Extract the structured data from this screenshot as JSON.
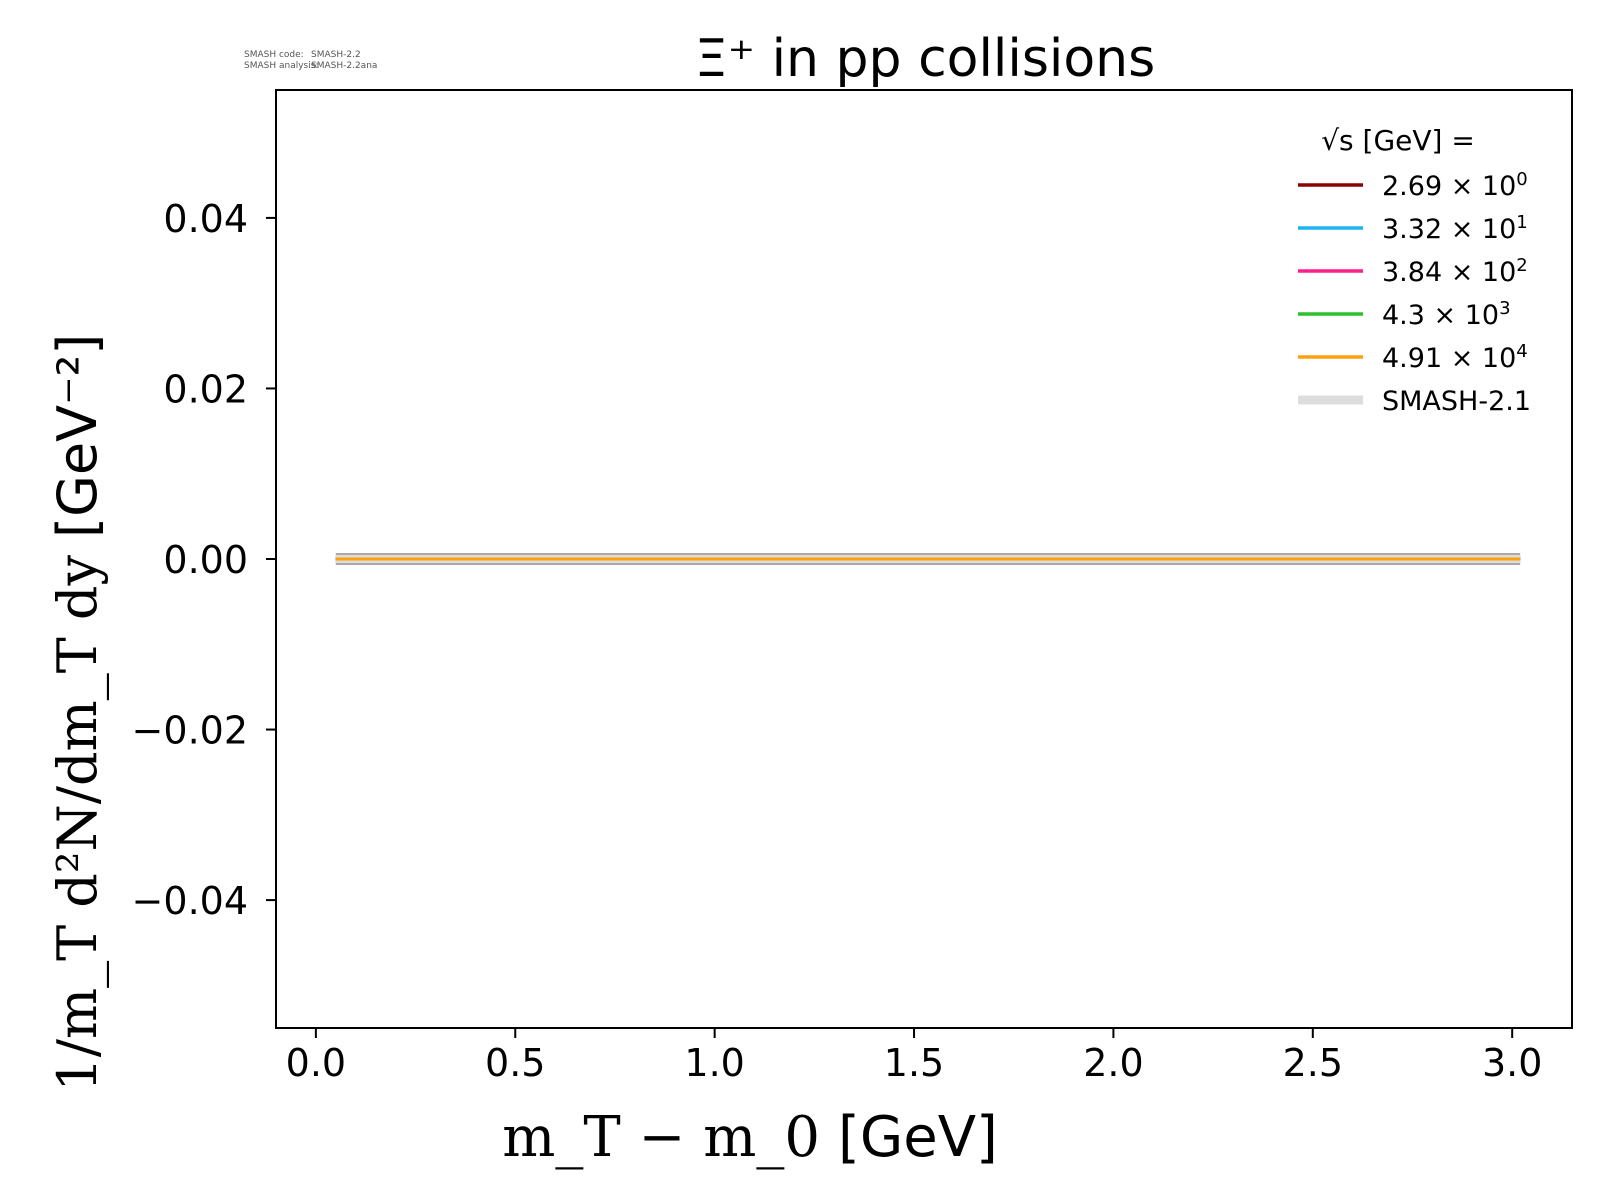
{
  "meta": {
    "code_label": "SMASH code:",
    "code_value": "SMASH-2.2",
    "analysis_label": "SMASH analysis:",
    "analysis_value": "SMASH-2.2ana"
  },
  "colors": {
    "frame": "#000000",
    "reference": "#dddddd",
    "reference_edge": "#aaaaaa"
  },
  "chart_data": {
    "type": "line",
    "title": "Ξ⁺ in pp collisions",
    "xlabel_math": "m_T − m_0",
    "xlabel_unit": "[GeV]",
    "ylabel_math": "1/m_T d²N/dm_T dy",
    "ylabel_unit": "[GeV⁻²]",
    "xlim": [
      -0.1,
      3.15
    ],
    "ylim": [
      -0.055,
      0.055
    ],
    "xticks": [
      0.0,
      0.5,
      1.0,
      1.5,
      2.0,
      2.5,
      3.0
    ],
    "xtick_labels": [
      "0.0",
      "0.5",
      "1.0",
      "1.5",
      "2.0",
      "2.5",
      "3.0"
    ],
    "yticks": [
      0.04,
      0.02,
      0.0,
      -0.02,
      -0.04
    ],
    "ytick_labels": [
      "0.04",
      "0.02",
      "0.00",
      "−0.02",
      "−0.04"
    ],
    "grid": false,
    "legend_position": "top-right",
    "legend_title": "√s  [GeV] =",
    "series": [
      {
        "name": "2.69 × 10⁰",
        "mant": "2.69",
        "exp": "0",
        "color": "#8b0000",
        "x": [
          0.05,
          3.02
        ],
        "y": [
          0.0,
          0.0
        ]
      },
      {
        "name": "3.32 × 10¹",
        "mant": "3.32",
        "exp": "1",
        "color": "#1eb4f0",
        "x": [
          0.05,
          3.02
        ],
        "y": [
          0.0,
          0.0
        ]
      },
      {
        "name": "3.84 × 10²",
        "mant": "3.84",
        "exp": "2",
        "color": "#ff1f8e",
        "x": [
          0.05,
          3.02
        ],
        "y": [
          0.0,
          0.0
        ]
      },
      {
        "name": "4.3 × 10³",
        "mant": "4.3",
        "exp": "3",
        "color": "#2dc02d",
        "x": [
          0.05,
          3.02
        ],
        "y": [
          0.0,
          0.0
        ]
      },
      {
        "name": "4.91 × 10⁴",
        "mant": "4.91",
        "exp": "4",
        "color": "#ffa010",
        "x": [
          0.05,
          3.02
        ],
        "y": [
          0.0,
          0.0
        ]
      }
    ],
    "reference": {
      "name": "SMASH-2.1",
      "x": [
        0.05,
        3.02
      ],
      "y": [
        0.0,
        0.0
      ]
    }
  }
}
